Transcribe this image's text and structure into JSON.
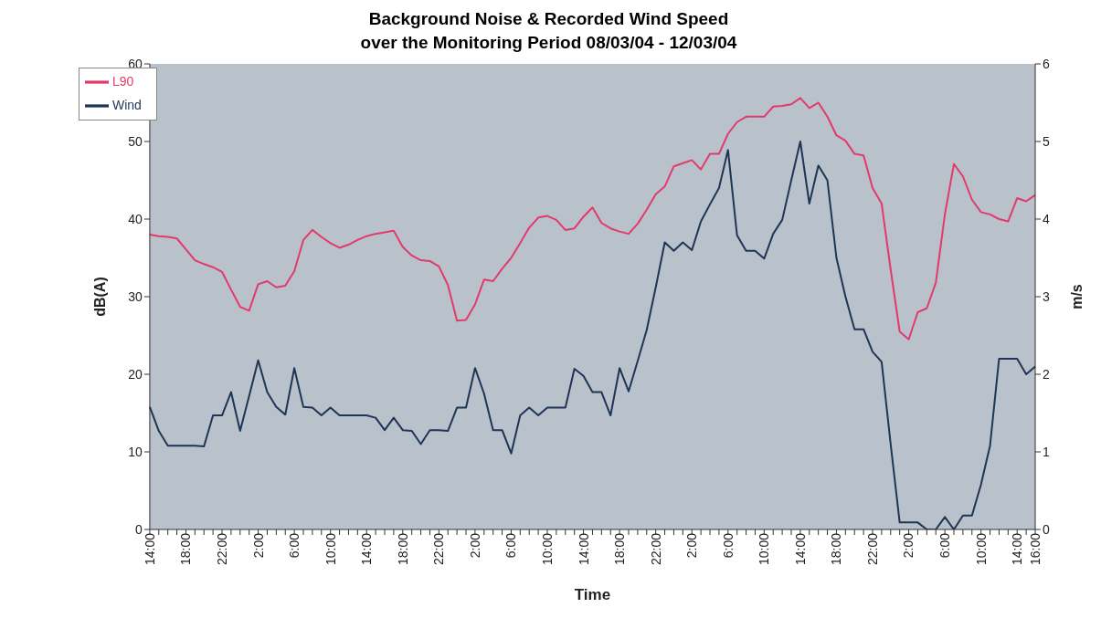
{
  "chart_data": {
    "type": "line",
    "title": "Background Noise & Recorded Wind Speed\nover the Monitoring Period 08/03/04 - 12/03/04",
    "xlabel": "Time",
    "ylabel": "dB(A)",
    "y2label": "m/s",
    "categories": [
      "14:00",
      null,
      null,
      null,
      "18:00",
      null,
      null,
      null,
      "22:00",
      null,
      null,
      null,
      "2:00",
      null,
      null,
      null,
      "6:00",
      null,
      null,
      null,
      "10:00",
      null,
      null,
      null,
      "14:00",
      null,
      null,
      null,
      "18:00",
      null,
      null,
      null,
      "22:00",
      null,
      null,
      null,
      "2:00",
      null,
      null,
      null,
      "6:00",
      null,
      null,
      null,
      "10:00",
      null,
      null,
      null,
      "14:00",
      null,
      null,
      null,
      "18:00",
      null,
      null,
      null,
      "22:00",
      null,
      null,
      null,
      "2:00",
      null,
      null,
      null,
      "6:00",
      null,
      null,
      null,
      "10:00",
      null,
      null,
      null,
      "14:00",
      null,
      null,
      null,
      "18:00",
      null,
      null,
      null,
      "22:00",
      null,
      null,
      null,
      "2:00",
      null,
      null,
      null,
      "6:00",
      null,
      null,
      null,
      "10:00",
      null,
      null,
      null,
      "14:00",
      null,
      "16:00"
    ],
    "series": [
      {
        "name": "L90",
        "color": "#e23a6a",
        "values": [
          38.0,
          37.8,
          37.7,
          37.5,
          36.1,
          34.7,
          34.2,
          33.8,
          33.2,
          30.9,
          28.7,
          28.2,
          31.6,
          32.0,
          31.2,
          31.4,
          33.3,
          37.3,
          38.6,
          37.7,
          36.9,
          36.3,
          36.7,
          37.3,
          37.8,
          38.1,
          38.3,
          38.5,
          36.4,
          35.3,
          34.7,
          34.6,
          33.9,
          31.5,
          26.9,
          27.0,
          29.0,
          32.2,
          32.0,
          33.6,
          35.0,
          36.9,
          38.9,
          40.2,
          40.4,
          39.9,
          38.6,
          38.8,
          40.3,
          41.5,
          39.5,
          38.8,
          38.4,
          38.1,
          39.4,
          41.2,
          43.2,
          44.2,
          46.8,
          47.2,
          47.6,
          46.4,
          48.4,
          48.4,
          51.0,
          52.5,
          53.2,
          53.2,
          53.2,
          54.5,
          54.6,
          54.8,
          55.6,
          54.3,
          55.0,
          53.2,
          50.8,
          50.1,
          48.4,
          48.2,
          44.0,
          42.0,
          33.5,
          25.5,
          24.5,
          28.0,
          28.5,
          31.8,
          40.6,
          47.1,
          45.5,
          42.5,
          40.9,
          40.6,
          40.0,
          39.7,
          42.7,
          42.3,
          43.1
        ]
      },
      {
        "name": "Wind",
        "color": "#1e3556",
        "axis": "y2",
        "values": [
          1.58,
          1.27,
          1.08,
          1.08,
          1.08,
          1.08,
          1.07,
          1.47,
          1.47,
          1.77,
          1.27,
          1.72,
          2.18,
          1.77,
          1.58,
          1.48,
          2.08,
          1.58,
          1.57,
          1.47,
          1.57,
          1.47,
          1.47,
          1.47,
          1.47,
          1.44,
          1.28,
          1.44,
          1.28,
          1.27,
          1.1,
          1.28,
          1.28,
          1.27,
          1.57,
          1.57,
          2.08,
          1.75,
          1.28,
          1.28,
          0.98,
          1.47,
          1.57,
          1.47,
          1.57,
          1.57,
          1.57,
          2.07,
          1.98,
          1.77,
          1.77,
          1.47,
          2.08,
          1.78,
          2.17,
          2.57,
          3.12,
          3.7,
          3.59,
          3.7,
          3.6,
          3.97,
          4.19,
          4.4,
          4.89,
          3.79,
          3.59,
          3.59,
          3.49,
          3.81,
          3.99,
          4.5,
          5.0,
          4.2,
          4.69,
          4.5,
          3.5,
          3.0,
          2.58,
          2.58,
          2.29,
          2.16,
          1.1,
          0.09,
          0.09,
          0.09,
          0,
          0,
          0.16,
          0,
          0.18,
          0.18,
          0.58,
          1.08,
          2.2,
          2.2,
          2.2,
          2.0,
          2.1
        ]
      }
    ],
    "ylim": [
      0,
      60
    ],
    "yticks": [
      0,
      10,
      20,
      30,
      40,
      50,
      60
    ],
    "y2lim": [
      0,
      6
    ],
    "y2ticks": [
      0,
      1,
      2,
      3,
      4,
      5,
      6
    ],
    "legend": "top left",
    "marker": "none",
    "line_style": "solid"
  }
}
